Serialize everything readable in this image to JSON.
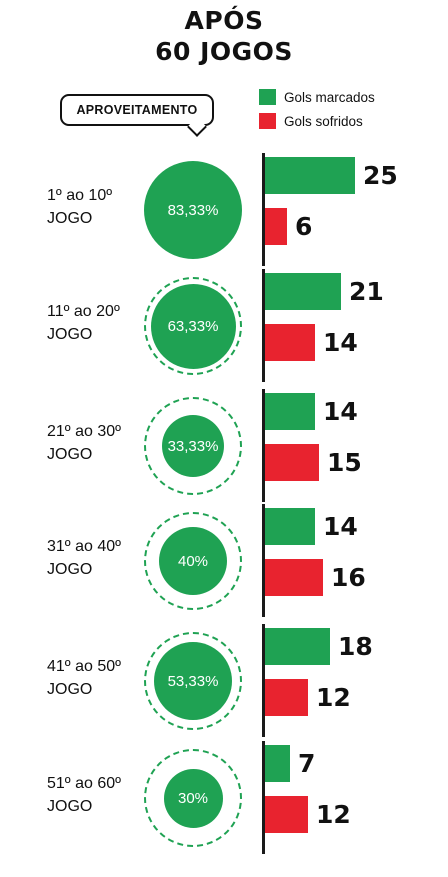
{
  "header": {
    "line1": "APÓS",
    "line2": "60 JOGOS"
  },
  "callout": {
    "label": "APROVEITAMENTO"
  },
  "legend": [
    {
      "label": "Gols marcados",
      "color": "#1fa253"
    },
    {
      "label": "Gols sofridos",
      "color": "#e8232f"
    }
  ],
  "chart_data": {
    "type": "bar",
    "categories": [
      "1º ao 10º JOGO",
      "11º ao 20º JOGO",
      "21º ao 30º JOGO",
      "31º ao 40º JOGO",
      "41º ao 50º JOGO",
      "51º ao 60º JOGO"
    ],
    "series": [
      {
        "name": "Gols marcados",
        "values": [
          25,
          21,
          14,
          14,
          18,
          7
        ],
        "color": "#1fa253"
      },
      {
        "name": "Gols sofridos",
        "values": [
          6,
          14,
          15,
          16,
          12,
          12
        ],
        "color": "#e8232f"
      }
    ],
    "aproveitamento": [
      83.33,
      63.33,
      33.33,
      40,
      53.33,
      30
    ],
    "aproveitamento_labels": [
      "83,33%",
      "63,33%",
      "33,33%",
      "40%",
      "53,33%",
      "30%"
    ]
  },
  "groups": [
    {
      "line1": "1º ao 10º",
      "line2": "JOGO"
    },
    {
      "line1": "11º ao 20º",
      "line2": "JOGO"
    },
    {
      "line1": "21º ao 30º",
      "line2": "JOGO"
    },
    {
      "line1": "31º ao 40º",
      "line2": "JOGO"
    },
    {
      "line1": "41º ao 50º",
      "line2": "JOGO"
    },
    {
      "line1": "51º ao 60º",
      "line2": "JOGO"
    }
  ]
}
